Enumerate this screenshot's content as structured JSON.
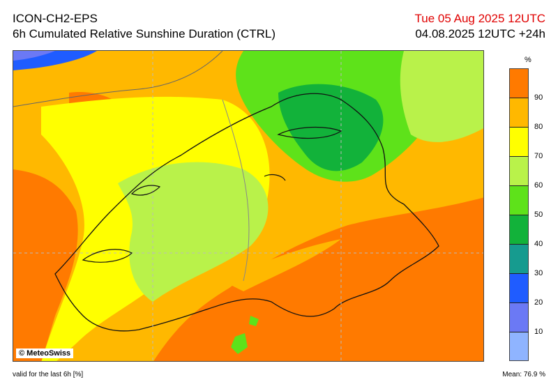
{
  "header": {
    "model": "ICON-CH2-EPS",
    "product": "6h Cumulated Relative Sunshine Duration (CTRL)",
    "valid_date": "Tue 05 Aug 2025 12UTC",
    "run": "04.08.2025 12UTC +24h"
  },
  "map": {
    "copyright": "© MeteoSwiss"
  },
  "legend": {
    "unit": "%",
    "ticks": [
      "90",
      "80",
      "70",
      "60",
      "50",
      "40",
      "30",
      "20",
      "10"
    ],
    "colors": {
      "c0_10": "#8fb4ff",
      "c10_20": "#6b79f5",
      "c20_30": "#1f5cff",
      "c30_40": "#169b8f",
      "c40_50": "#12b23a",
      "c50_60": "#5ee21a",
      "c60_70": "#b9f24a",
      "c70_80": "#ffff00",
      "c80_90": "#ffb800",
      "c90_100": "#ff7a00"
    }
  },
  "footer": {
    "valid_note": "valid for the last 6h [%]",
    "mean": "Mean:   76.9 %"
  }
}
